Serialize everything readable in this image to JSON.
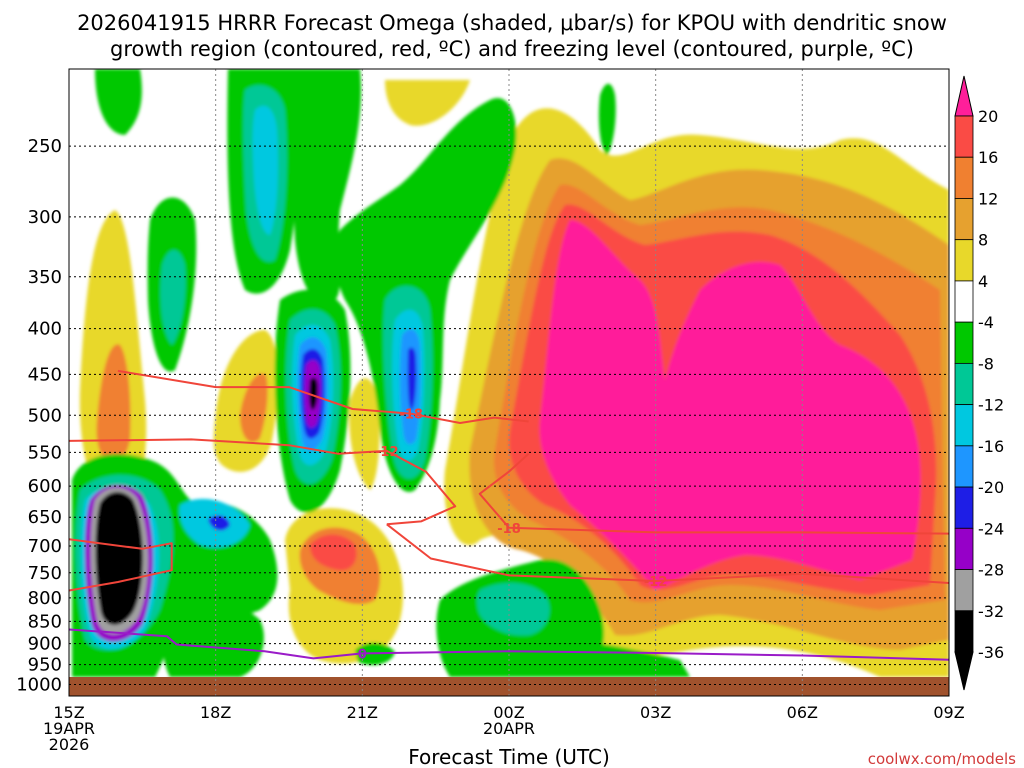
{
  "chart_data": {
    "type": "heatmap",
    "title": "2026041915 HRRR Forecast Omega (shaded, μbar/s) for KPOU with dendritic snow growth region (contoured, red, ºC) and freezing level (contoured, purple, ºC)",
    "title_lines": [
      "2026041915 HRRR Forecast Omega (shaded, μbar/s) for KPOU with dendritic snow",
      "growth region (contoured, red, ºC) and freezing level (contoured, purple, ºC)"
    ],
    "xlabel": "Forecast Time (UTC)",
    "ylabel": "",
    "x_range_hours": [
      0,
      18
    ],
    "x_ticks": [
      {
        "hours": 0,
        "lines": [
          "15Z",
          "19APR",
          "2026"
        ]
      },
      {
        "hours": 3,
        "lines": [
          "18Z"
        ]
      },
      {
        "hours": 6,
        "lines": [
          "21Z"
        ]
      },
      {
        "hours": 9,
        "lines": [
          "00Z",
          "20APR"
        ]
      },
      {
        "hours": 12,
        "lines": [
          "03Z"
        ]
      },
      {
        "hours": 15,
        "lines": [
          "06Z"
        ]
      },
      {
        "hours": 18,
        "lines": [
          "09Z"
        ]
      }
    ],
    "y_axis": {
      "scale": "log",
      "inverted": true,
      "range_hPa": [
        1030,
        205
      ]
    },
    "y_ticks": [
      250,
      300,
      350,
      400,
      450,
      500,
      550,
      600,
      650,
      700,
      750,
      800,
      850,
      900,
      950,
      1000
    ],
    "grid": true,
    "colorbar": {
      "labels": [
        20,
        16,
        12,
        8,
        4,
        -4,
        -8,
        -12,
        -16,
        -20,
        -24,
        -28,
        -32,
        -36
      ],
      "colors": [
        "#ff1f9a",
        "#fa4b45",
        "#f08030",
        "#e6a12f",
        "#e8d82a",
        "#ffffff",
        "#00c800",
        "#00c896",
        "#00c8e0",
        "#1e96ff",
        "#1e1ee6",
        "#9600c8",
        "#a0a0a0",
        "#000000"
      ]
    },
    "series": [
      {
        "name": "-18",
        "points": [
          [
            1.0,
            446
          ],
          [
            3.0,
            465
          ],
          [
            4.5,
            465
          ],
          [
            5.8,
            492
          ],
          [
            7.0,
            498
          ],
          [
            8.0,
            510
          ],
          [
            8.7,
            503
          ],
          [
            9.4,
            508
          ]
        ]
      },
      {
        "name": "-12",
        "points": [
          [
            0.0,
            534
          ],
          [
            2.5,
            532
          ],
          [
            4.5,
            540
          ],
          [
            5.5,
            552
          ],
          [
            6.5,
            548
          ],
          [
            7.3,
            578
          ],
          [
            7.9,
            632
          ],
          [
            7.2,
            657
          ],
          [
            6.5,
            662
          ]
        ]
      },
      {
        "name": "-18",
        "points": [
          [
            9.4,
            552
          ],
          [
            9.0,
            578
          ],
          [
            8.4,
            612
          ],
          [
            9.0,
            668
          ],
          [
            12.0,
            676
          ],
          [
            15.0,
            676
          ],
          [
            18.0,
            678
          ]
        ]
      },
      {
        "name": "-12",
        "points": [
          [
            6.5,
            662
          ],
          [
            7.4,
            723
          ],
          [
            9.0,
            755
          ],
          [
            12.0,
            766
          ],
          [
            15.0,
            752
          ],
          [
            18.0,
            770
          ]
        ]
      },
      {
        "name": "0",
        "points": [
          [
            0.0,
            868
          ],
          [
            2.0,
            883
          ],
          [
            2.2,
            902
          ],
          [
            4.0,
            918
          ],
          [
            5.0,
            935
          ],
          [
            6.0,
            923
          ],
          [
            9.0,
            918
          ],
          [
            12.0,
            922
          ],
          [
            15.0,
            928
          ],
          [
            18.0,
            938
          ]
        ]
      },
      {
        "name": "",
        "points": [
          [
            0.0,
            688
          ],
          [
            1.5,
            705
          ],
          [
            2.1,
            695
          ],
          [
            2.1,
            745
          ],
          [
            1.0,
            768
          ],
          [
            0.0,
            785
          ]
        ]
      }
    ],
    "credit": "coolwx.com/models"
  }
}
